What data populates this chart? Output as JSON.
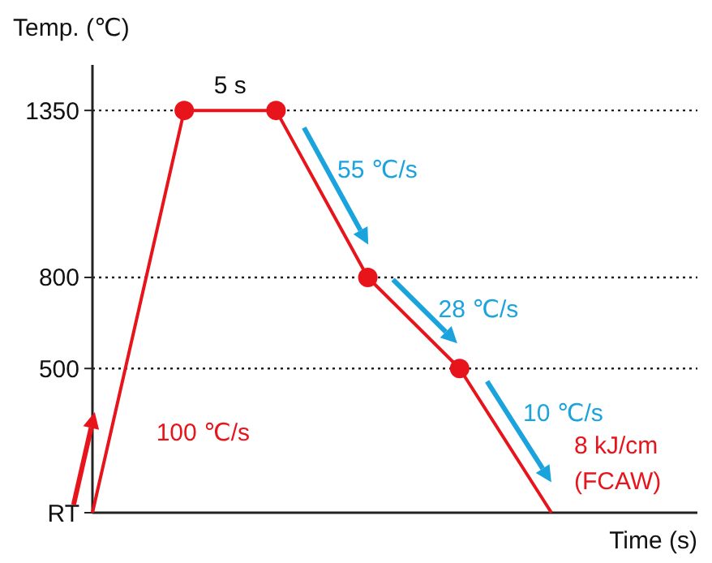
{
  "chart_data": {
    "type": "line",
    "ylabel": "Temp. (℃)",
    "xlabel": "Time (s)",
    "categories": [
      null,
      null,
      null,
      null,
      null,
      null
    ],
    "ylim": [
      25,
      1500
    ],
    "yticks": [
      {
        "value": 25,
        "label": "RT"
      },
      500,
      800,
      1350
    ],
    "tick_labels": "y",
    "grid": "y",
    "line_style": "solid",
    "series": [
      {
        "type": "line",
        "color": "#e8141b",
        "values": [
          25,
          1350,
          1350,
          800,
          500,
          25
        ]
      },
      {
        "type": "scatter",
        "color": "#e8141b",
        "marker": "circle",
        "values": [
          null,
          1350,
          1350,
          800,
          500,
          null
        ]
      }
    ],
    "annotations": [
      "5 s",
      "55 ℃/s",
      "28 ℃/s",
      "10 ℃/s",
      "8 kJ/cm",
      "(FCAW)",
      "100 ℃/s"
    ]
  }
}
